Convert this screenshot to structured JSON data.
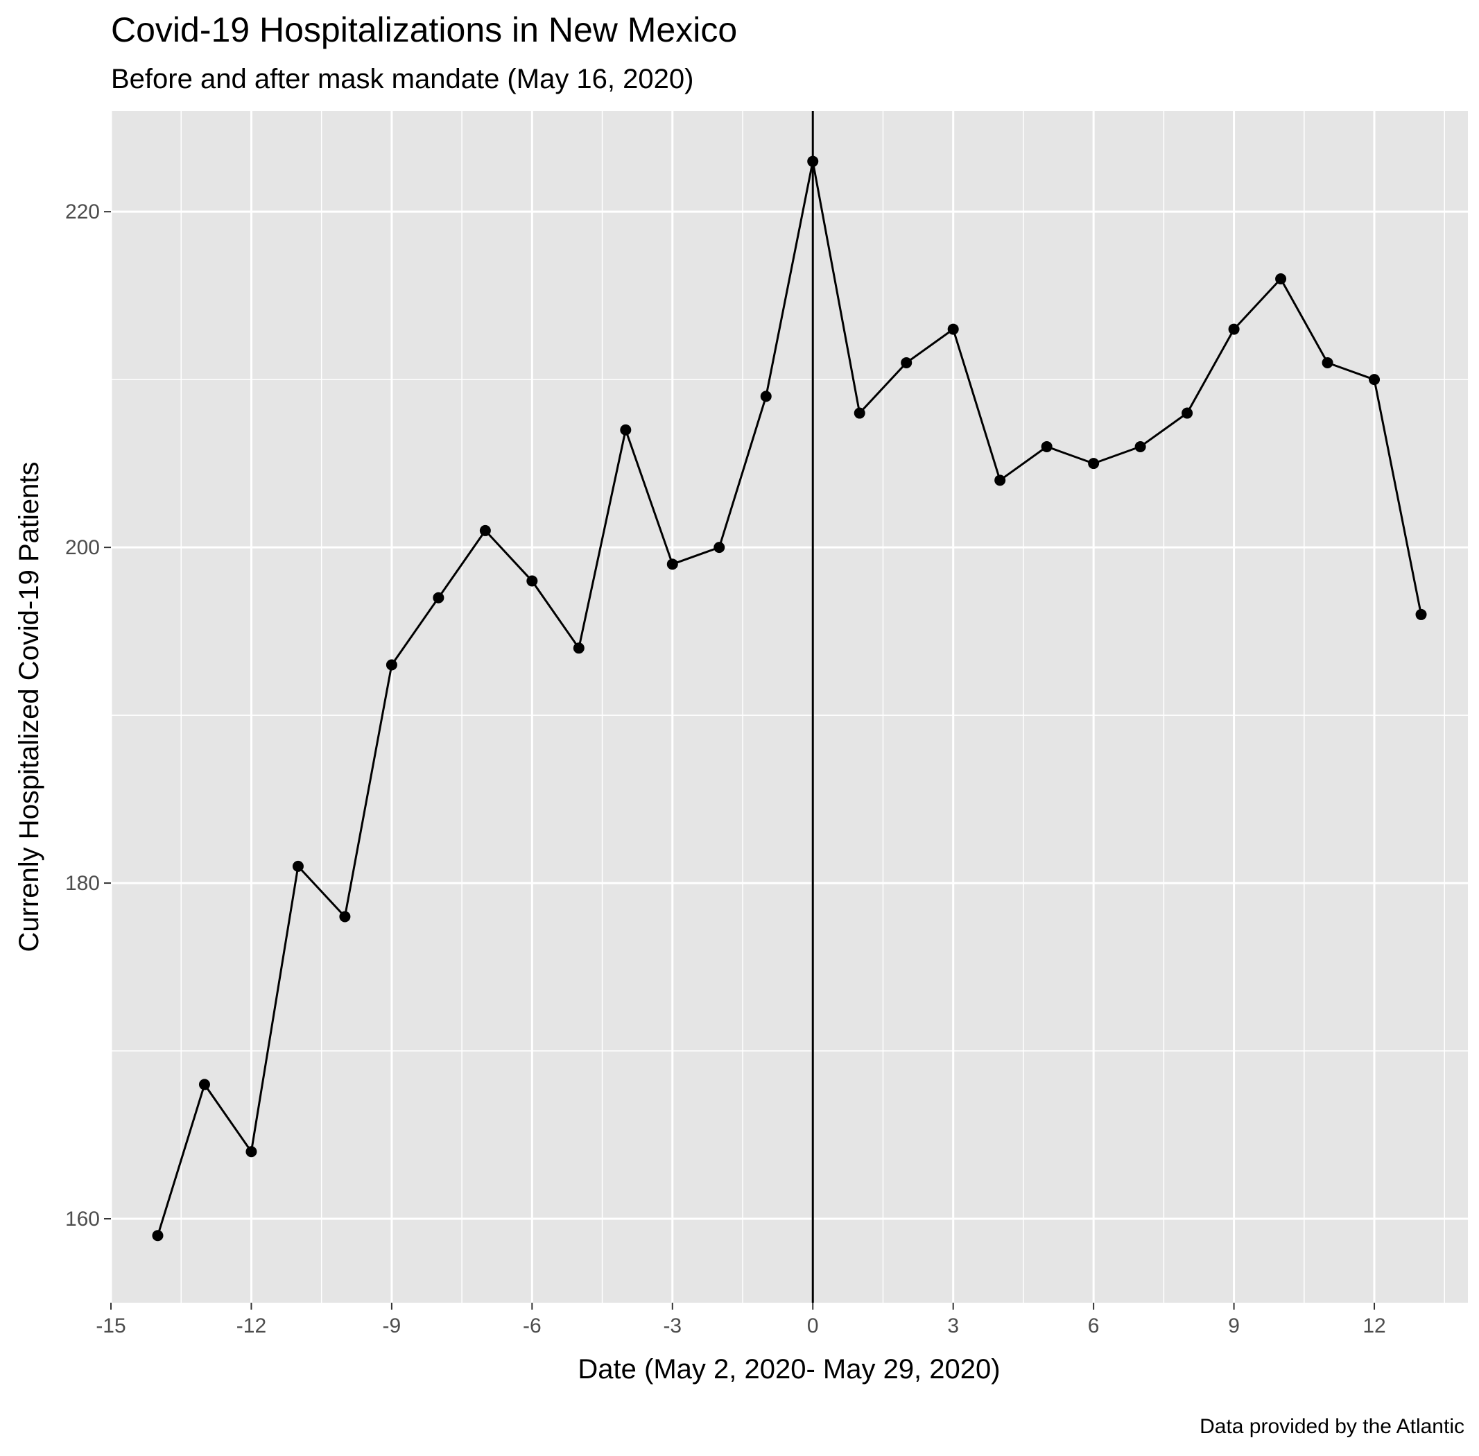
{
  "chart_data": {
    "type": "line",
    "title": "Covid-19 Hospitalizations in New Mexico",
    "subtitle": "Before and after mask mandate (May 16, 2020)",
    "xlabel": "Date (May 2, 2020- May 29, 2020)",
    "ylabel": "Currenly Hospitalized Covid-19 Patients",
    "caption": "Data provided by the Atlantic",
    "xlim": [
      -15,
      14
    ],
    "ylim": [
      155,
      226
    ],
    "x_ticks": [
      -15,
      -12,
      -9,
      -6,
      -3,
      0,
      3,
      6,
      9,
      12
    ],
    "x_tick_labels": [
      "-15",
      "-12",
      "-9",
      "-6",
      "-3",
      "0",
      "3",
      "6",
      "9",
      "12"
    ],
    "y_ticks": [
      160,
      180,
      200,
      220
    ],
    "y_tick_labels": [
      "160",
      "180",
      "200",
      "220"
    ],
    "grid": true,
    "reference_line_x": 0,
    "x": [
      -14,
      -13,
      -12,
      -11,
      -10,
      -9,
      -8,
      -7,
      -6,
      -5,
      -4,
      -3,
      -2,
      -1,
      0,
      1,
      2,
      3,
      4,
      5,
      6,
      7,
      8,
      9,
      10,
      11,
      12,
      13
    ],
    "y": [
      159,
      168,
      164,
      181,
      178,
      193,
      197,
      201,
      198,
      194,
      207,
      199,
      200,
      209,
      223,
      208,
      211,
      213,
      204,
      206,
      205,
      206,
      208,
      213,
      216,
      211,
      210,
      196
    ],
    "colors": {
      "panel": "#e5e5e5",
      "grid": "#ffffff",
      "line": "#000000",
      "tick_text": "#4d4d4d"
    }
  }
}
